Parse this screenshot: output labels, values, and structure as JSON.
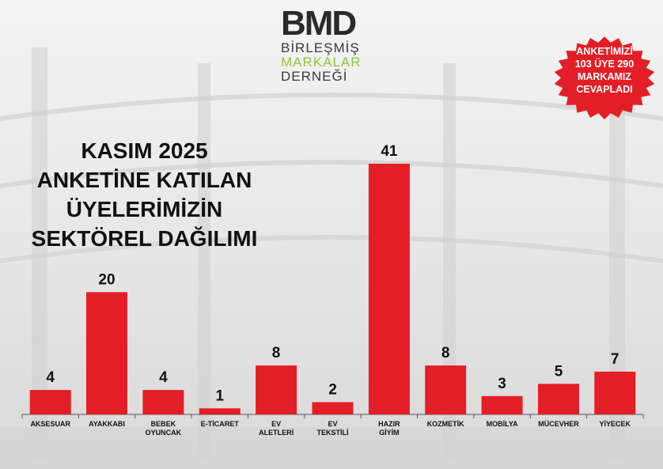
{
  "logo": {
    "mark": "BMD",
    "line1": "BİRLEŞMİŞ",
    "line2": "MARKALAR",
    "line3": "DERNEĞİ"
  },
  "badge": {
    "lines": [
      "ANKETİMİZİ",
      "103 ÜYE 290",
      "MARKAMIZ",
      "CEVAPLADI"
    ],
    "color": "#e41e26"
  },
  "colors": {
    "bar": "#e41e26",
    "axis": "#555555",
    "text": "#111111"
  },
  "chart_data": {
    "type": "bar",
    "title": [
      "KASIM 2025",
      "ANKETİNE KATILAN",
      "ÜYELERİMİZİN",
      "SEKTÖREL DAĞILIMI"
    ],
    "categories": [
      [
        "AKSESUAR"
      ],
      [
        "AYAKKABI"
      ],
      [
        "BEBEK",
        "OYUNCAK"
      ],
      [
        "E-TİCARET"
      ],
      [
        "EV",
        "ALETLERİ"
      ],
      [
        "EV",
        "TEKSTİLİ"
      ],
      [
        "HAZIR",
        "GİYİM"
      ],
      [
        "KOZMETİK"
      ],
      [
        "MOBİLYA"
      ],
      [
        "MÜCEVHER"
      ],
      [
        "YİYECEK"
      ]
    ],
    "values": [
      4,
      20,
      4,
      1,
      8,
      2,
      41,
      8,
      3,
      5,
      7
    ],
    "data_labels": true,
    "ylim": [
      0,
      41
    ],
    "xlabel": "",
    "ylabel": "",
    "grid": false,
    "legend": "none"
  }
}
